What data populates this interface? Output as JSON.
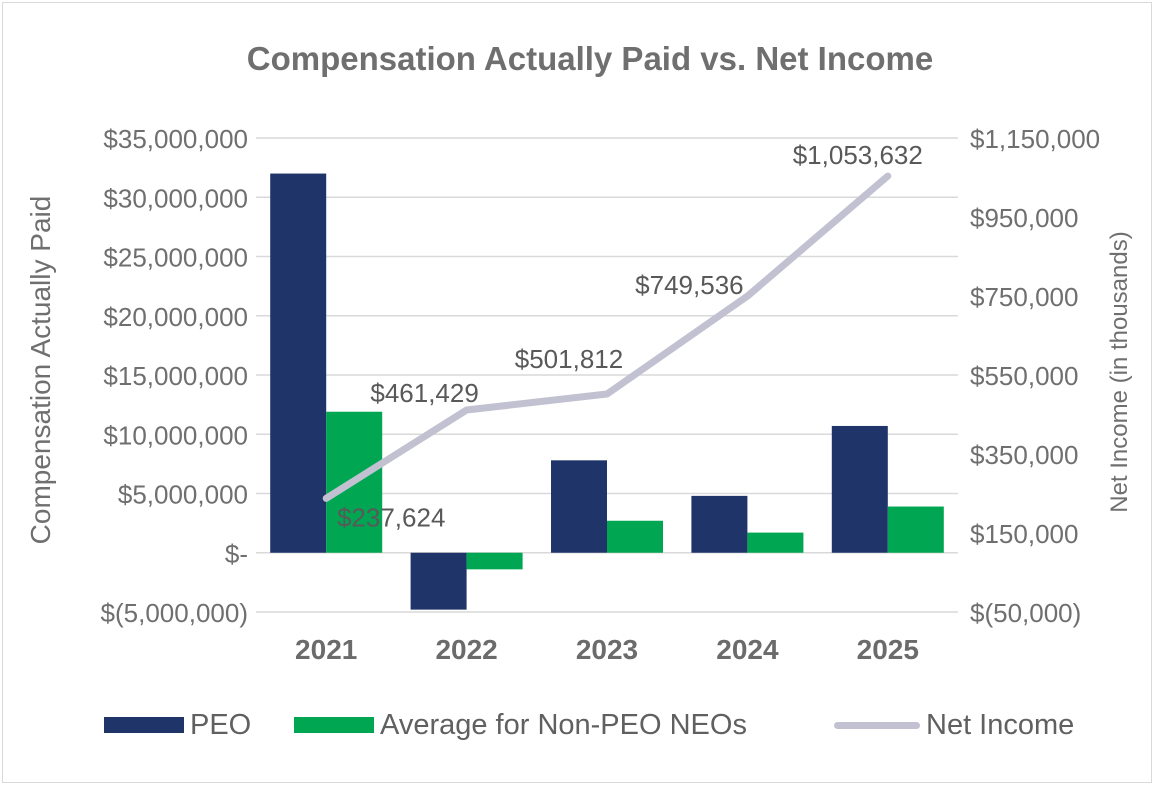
{
  "title": "Compensation Actually Paid vs. Net Income",
  "colors": {
    "peo": "#1f3468",
    "non_peo": "#00a651",
    "net_income": "#c1c1d1",
    "grid": "#d9d9d9",
    "axis_text": "#6f6f6f",
    "category_text": "#6b6b6b"
  },
  "legend": {
    "peo": "PEO",
    "non_peo": "Average for Non-PEO NEOs",
    "net_income": "Net Income"
  },
  "chart_data": {
    "type": "bar",
    "title": "Compensation Actually Paid vs. Net Income",
    "categories": [
      "2021",
      "2022",
      "2023",
      "2024",
      "2025"
    ],
    "series": [
      {
        "name": "PEO",
        "type": "bar",
        "axis": "left",
        "values": [
          32000000,
          -4800000,
          7800000,
          4800000,
          10700000
        ]
      },
      {
        "name": "Average for Non-PEO NEOs",
        "type": "bar",
        "axis": "left",
        "values": [
          11900000,
          -1400000,
          2700000,
          1700000,
          3900000
        ]
      },
      {
        "name": "Net Income",
        "type": "line",
        "axis": "right",
        "values": [
          237624,
          461429,
          501812,
          749536,
          1053632
        ]
      }
    ],
    "data_labels": [
      "$237,624",
      "$461,429",
      "$501,812",
      "$749,536",
      "$1,053,632"
    ],
    "ylabel": "Compensation Actually Paid",
    "y2label": "Net Income (in thousands)",
    "ylim": [
      -5000000,
      35000000
    ],
    "y2lim": [
      -50000,
      1150000
    ],
    "yticks": [
      35000000,
      30000000,
      25000000,
      20000000,
      15000000,
      10000000,
      5000000,
      0,
      -5000000
    ],
    "ytick_labels": [
      "$35,000,000",
      "$30,000,000",
      "$25,000,000",
      "$20,000,000",
      "$15,000,000",
      "$10,000,000",
      "$5,000,000",
      "$-",
      "$(5,000,000)"
    ],
    "y2ticks": [
      1150000,
      950000,
      750000,
      550000,
      350000,
      150000,
      -50000
    ],
    "y2tick_labels": [
      "$1,150,000",
      "$950,000",
      "$750,000",
      "$550,000",
      "$350,000",
      "$150,000",
      "$(50,000)"
    ],
    "grid": true,
    "legend_position": "bottom"
  }
}
